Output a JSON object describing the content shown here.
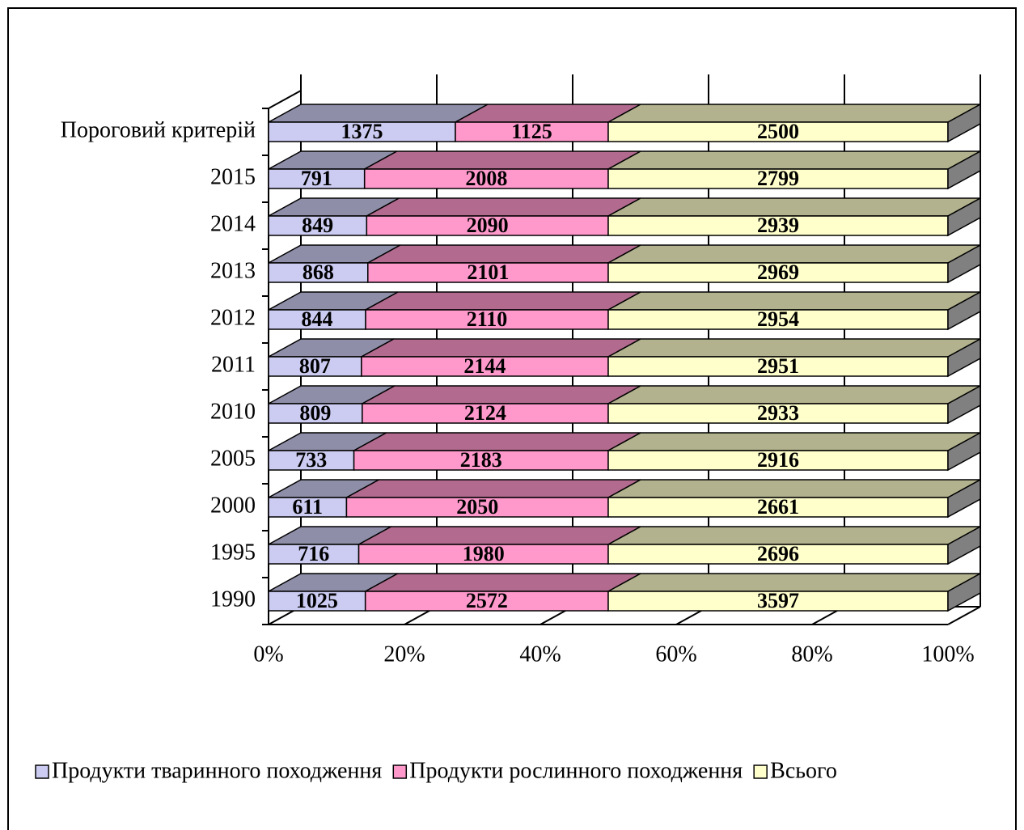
{
  "chart_data": {
    "type": "bar",
    "orientation": "horizontal",
    "stacked": "percent",
    "categories": [
      "1990",
      "1995",
      "2000",
      "2005",
      "2010",
      "2011",
      "2012",
      "2013",
      "2014",
      "2015",
      "Пороговий критерій"
    ],
    "series": [
      {
        "name": "Продукти тваринного походження",
        "color": "#ccccf2",
        "values": [
          1025,
          716,
          611,
          733,
          809,
          807,
          844,
          868,
          849,
          791,
          1375
        ]
      },
      {
        "name": "Продукти рослинного походження",
        "color": "#ff99cc",
        "values": [
          2572,
          1980,
          2050,
          2183,
          2124,
          2144,
          2110,
          2101,
          2090,
          2008,
          1125
        ]
      },
      {
        "name": "Всього",
        "color": "#ffffcc",
        "values": [
          3597,
          2696,
          2661,
          2916,
          2933,
          2951,
          2954,
          2969,
          2939,
          2799,
          2500
        ]
      }
    ],
    "xlim": [
      0,
      100
    ],
    "xticks": [
      {
        "value": 0,
        "label": "0%"
      },
      {
        "value": 20,
        "label": "20%"
      },
      {
        "value": 40,
        "label": "40%"
      },
      {
        "value": 60,
        "label": "60%"
      },
      {
        "value": 80,
        "label": "80%"
      },
      {
        "value": 100,
        "label": "100%"
      }
    ],
    "legend": "bottom"
  }
}
